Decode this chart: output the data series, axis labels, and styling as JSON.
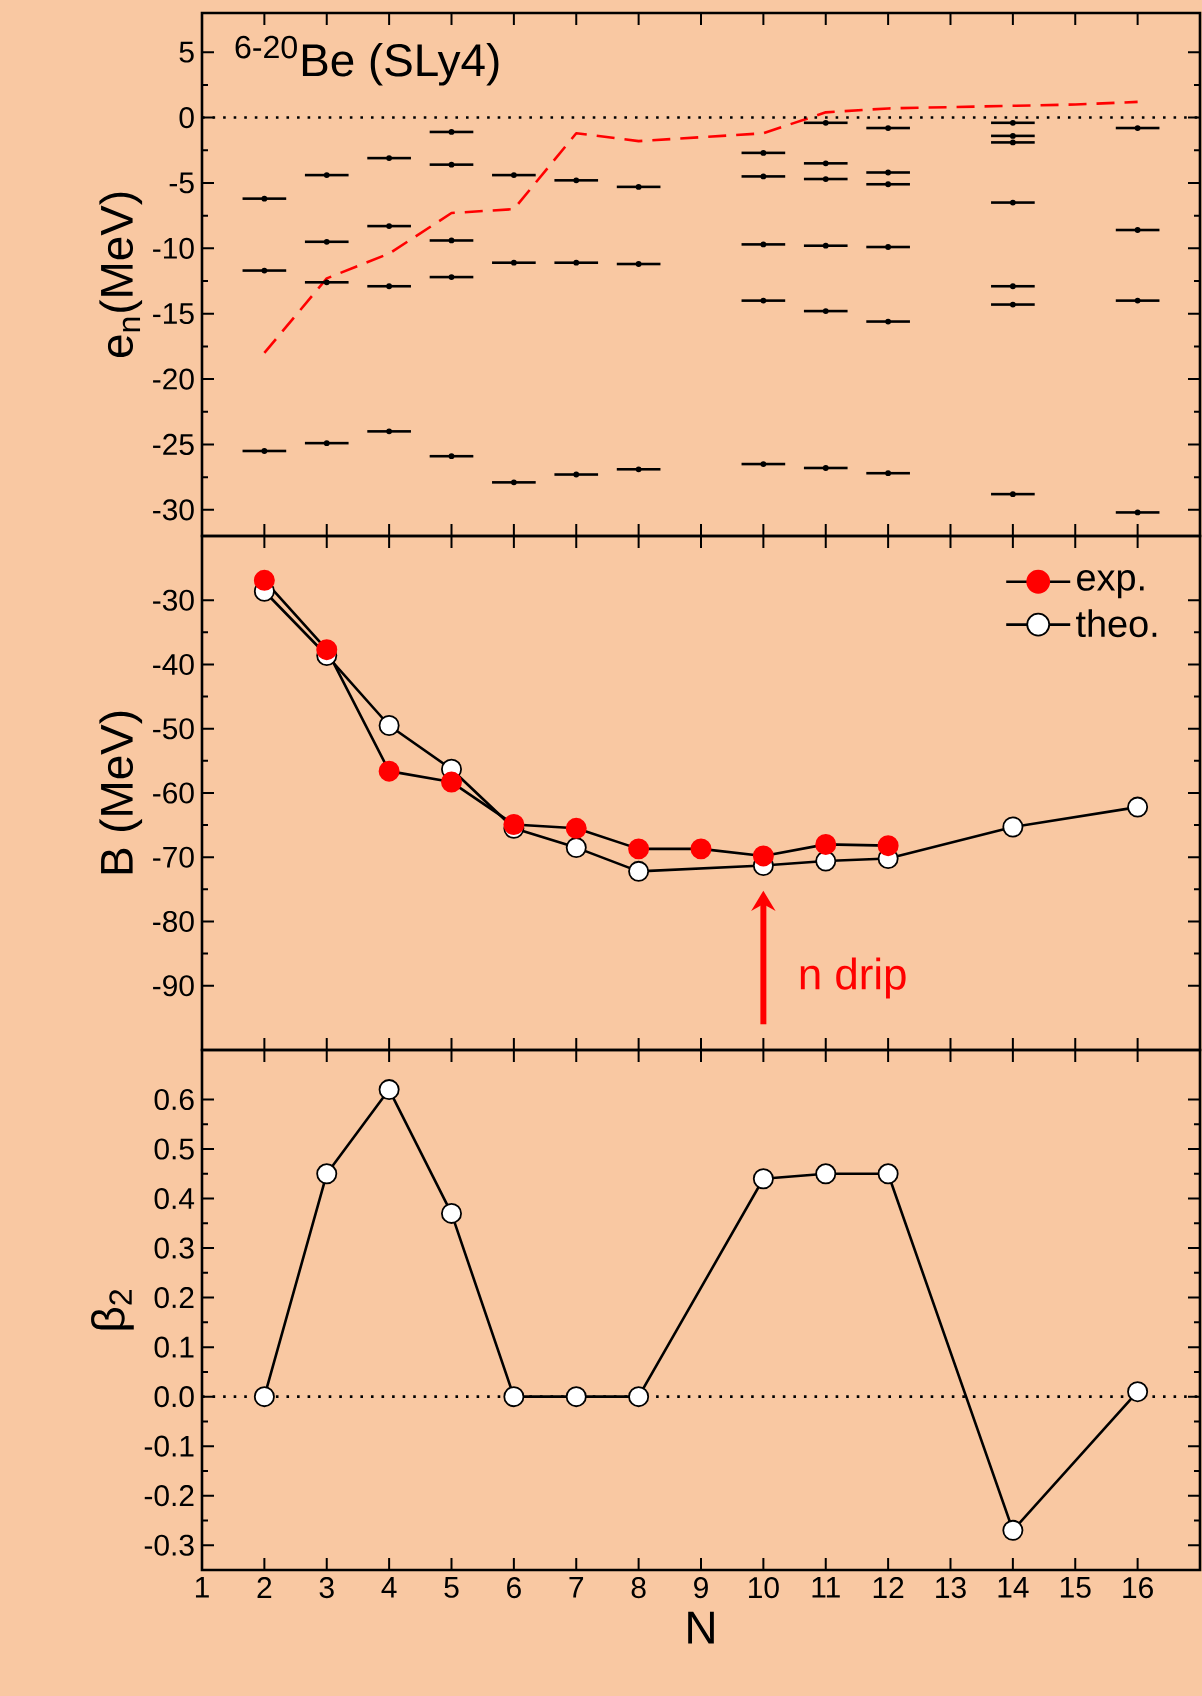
{
  "chart_data": [
    {
      "type": "line",
      "ylabel": "e$_{n}$(MeV)",
      "annotations": [
        "$^{6-20}$Be (SLy4)"
      ],
      "xlim": [
        1,
        17
      ],
      "xticks": [
        1,
        2,
        3,
        4,
        5,
        6,
        7,
        8,
        9,
        10,
        11,
        12,
        13,
        14,
        15,
        16
      ],
      "ylim": [
        -32,
        8
      ],
      "yticks": [
        -30,
        -25,
        -20,
        -15,
        -10,
        -5,
        0,
        5
      ],
      "tick_labels": "y",
      "legend": false,
      "ref_lines": [
        {
          "axis": "y",
          "value": 0,
          "color": "#000000",
          "line_style": "dotted"
        }
      ],
      "series": [
        {
          "type": "scatter",
          "color": "#000000",
          "marker": "circle",
          "x": [
            2,
            2,
            2,
            3,
            3,
            3,
            3,
            4,
            4,
            4,
            4,
            5,
            5,
            5,
            5,
            5,
            6,
            6,
            6,
            7,
            7,
            7,
            8,
            8,
            8,
            10,
            10,
            10,
            10,
            10,
            11,
            11,
            11,
            11,
            11,
            11,
            12,
            12,
            12,
            12,
            12,
            12,
            14,
            14,
            14,
            14,
            14,
            14,
            14,
            16,
            16,
            16,
            16
          ],
          "values": [
            -6.2,
            -11.7,
            -25.5,
            -4.4,
            -9.5,
            -12.6,
            -24.9,
            -3.1,
            -8.3,
            -12.9,
            -24.0,
            -1.1,
            -3.6,
            -9.4,
            -12.2,
            -25.9,
            -4.4,
            -11.1,
            -27.9,
            -4.8,
            -11.1,
            -27.3,
            -5.3,
            -11.2,
            -26.9,
            -2.7,
            -4.5,
            -9.7,
            -14.0,
            -26.5,
            -0.4,
            -3.5,
            -4.7,
            -9.8,
            -14.8,
            -26.8,
            -0.8,
            -4.2,
            -5.1,
            -9.9,
            -15.6,
            -27.2,
            -0.4,
            -1.4,
            -1.9,
            -6.5,
            -12.9,
            -14.3,
            -28.8,
            -0.8,
            -8.6,
            -14.0,
            -30.2
          ],
          "xerrors": [
            0.35,
            0.35,
            0.35,
            0.35,
            0.35,
            0.35,
            0.35,
            0.35,
            0.35,
            0.35,
            0.35,
            0.35,
            0.35,
            0.35,
            0.35,
            0.35,
            0.35,
            0.35,
            0.35,
            0.35,
            0.35,
            0.35,
            0.35,
            0.35,
            0.35,
            0.35,
            0.35,
            0.35,
            0.35,
            0.35,
            0.35,
            0.35,
            0.35,
            0.35,
            0.35,
            0.35,
            0.35,
            0.35,
            0.35,
            0.35,
            0.35,
            0.35,
            0.35,
            0.35,
            0.35,
            0.35,
            0.35,
            0.35,
            0.35,
            0.35,
            0.35,
            0.35,
            0.35
          ]
        },
        {
          "type": "line",
          "color": "#ff0000",
          "line_style": "dashed",
          "marker": "none",
          "x": [
            2,
            3,
            4,
            5,
            6,
            7,
            8,
            9,
            10,
            11,
            12,
            13,
            14,
            15,
            16
          ],
          "values": [
            -18.0,
            -12.3,
            -10.4,
            -7.3,
            -7.0,
            -1.2,
            -1.8,
            -1.5,
            -1.2,
            0.4,
            0.7,
            0.8,
            0.9,
            1.0,
            1.2
          ]
        }
      ]
    },
    {
      "type": "line",
      "ylabel": "B (MeV)",
      "xlim": [
        1,
        17
      ],
      "xticks": [
        1,
        2,
        3,
        4,
        5,
        6,
        7,
        8,
        9,
        10,
        11,
        12,
        13,
        14,
        15,
        16
      ],
      "ylim": [
        -100,
        -20
      ],
      "yticks": [
        -90,
        -80,
        -70,
        -60,
        -50,
        -40,
        -30
      ],
      "tick_labels": "y",
      "legend": "top right",
      "annotations": [
        "n drip"
      ],
      "series": [
        {
          "name": "exp.",
          "color": "#ff0000",
          "marker": "circle",
          "line_style": "solid",
          "x": [
            2,
            3,
            4,
            5,
            6,
            7,
            8,
            9,
            10,
            11,
            12
          ],
          "values": [
            -26.9,
            -37.7,
            -56.6,
            -58.3,
            -64.9,
            -65.5,
            -68.7,
            -68.7,
            -69.8,
            -68.0,
            -68.2
          ]
        },
        {
          "name": "theo.",
          "color": "#ffffff",
          "marker": "circle",
          "line_style": "solid",
          "x": [
            2,
            3,
            4,
            5,
            6,
            7,
            8,
            10,
            11,
            12,
            14,
            16
          ],
          "values": [
            -28.6,
            -38.6,
            -49.5,
            -56.3,
            -65.5,
            -68.5,
            -72.2,
            -71.3,
            -70.6,
            -70.2,
            -65.3,
            -62.2
          ]
        }
      ]
    },
    {
      "type": "line",
      "xlabel": "N",
      "ylabel": "β$_{2}$",
      "xlim": [
        1,
        17
      ],
      "xticks": [
        1,
        2,
        3,
        4,
        5,
        6,
        7,
        8,
        9,
        10,
        11,
        12,
        13,
        14,
        15,
        16
      ],
      "ylim": [
        -0.35,
        0.7
      ],
      "yticks": [
        -0.3,
        -0.2,
        -0.1,
        {
          "value": 0,
          "label": "0.0"
        },
        0.1,
        0.2,
        0.3,
        0.4,
        0.5,
        0.6
      ],
      "legend": false,
      "ref_lines": [
        {
          "axis": "y",
          "value": 0,
          "color": "#000000",
          "line_style": "dotted"
        }
      ],
      "series": [
        {
          "color": "#ffffff",
          "marker": "circle",
          "line_style": "solid",
          "x": [
            2,
            3,
            4,
            5,
            6,
            7,
            8,
            10,
            11,
            12,
            14,
            16
          ],
          "values": [
            0.0,
            0.45,
            0.62,
            0.37,
            0.0,
            0.0,
            0.0,
            0.44,
            0.45,
            0.45,
            -0.27,
            0.01
          ]
        }
      ]
    }
  ]
}
